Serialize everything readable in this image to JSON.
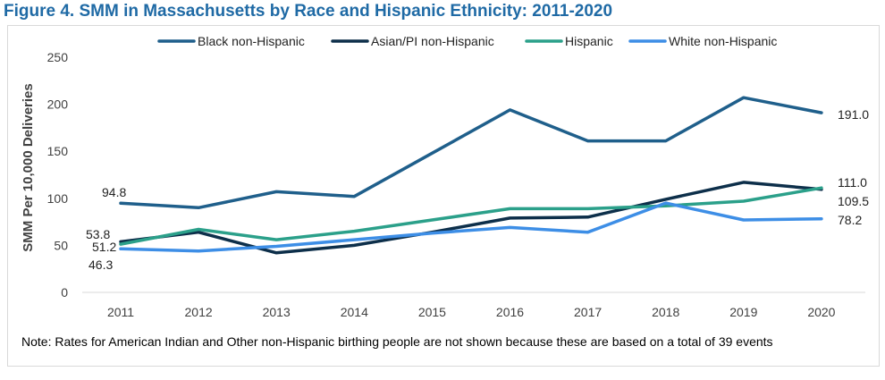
{
  "figure": {
    "title": "Figure 4. SMM in Massachusetts by Race and Hispanic Ethnicity: 2011-2020",
    "note": "Note: Rates for American Indian and Other non-Hispanic birthing people are not shown because these are based on a total of 39 events"
  },
  "chart_data": {
    "type": "line",
    "title": "Figure 4. SMM in Massachusetts by Race and Hispanic Ethnicity: 2011-2020",
    "xlabel": "",
    "ylabel": "SMM Per 10,000 Deliveries",
    "ylim": [
      0,
      250
    ],
    "yticks": [
      0,
      50,
      100,
      150,
      200,
      250
    ],
    "grid": false,
    "legend_position": "top",
    "categories": [
      "2011",
      "2012",
      "2013",
      "2014",
      "2015",
      "2016",
      "2017",
      "2018",
      "2019",
      "2020"
    ],
    "series": [
      {
        "name": "Black non-Hispanic",
        "color": "#1f5f8b",
        "values": [
          94.8,
          90,
          107,
          102,
          148,
          194,
          161,
          161,
          207,
          191.0
        ]
      },
      {
        "name": "Asian/PI non-Hispanic",
        "color": "#0d2f4a",
        "values": [
          53.8,
          64,
          42,
          50,
          64,
          79,
          80,
          99,
          117,
          109.5
        ]
      },
      {
        "name": "Hispanic",
        "color": "#2ba08a",
        "values": [
          51.2,
          67,
          56,
          65,
          77,
          89,
          89,
          92,
          97,
          111.0
        ]
      },
      {
        "name": "White non-Hispanic",
        "color": "#3d8ee6",
        "values": [
          46.3,
          44,
          49,
          56,
          63,
          69,
          64,
          95,
          77,
          78.2
        ]
      }
    ],
    "data_labels": [
      {
        "series": "Black non-Hispanic",
        "category": "2011",
        "text": "94.8"
      },
      {
        "series": "Asian/PI non-Hispanic",
        "category": "2011",
        "text": "53.8"
      },
      {
        "series": "Hispanic",
        "category": "2011",
        "text": "51.2"
      },
      {
        "series": "White non-Hispanic",
        "category": "2011",
        "text": "46.3"
      },
      {
        "series": "Black non-Hispanic",
        "category": "2020",
        "text": "191.0"
      },
      {
        "series": "Hispanic",
        "category": "2020",
        "text": "111.0"
      },
      {
        "series": "Asian/PI non-Hispanic",
        "category": "2020",
        "text": "109.5"
      },
      {
        "series": "White non-Hispanic",
        "category": "2020",
        "text": "78.2"
      }
    ]
  }
}
